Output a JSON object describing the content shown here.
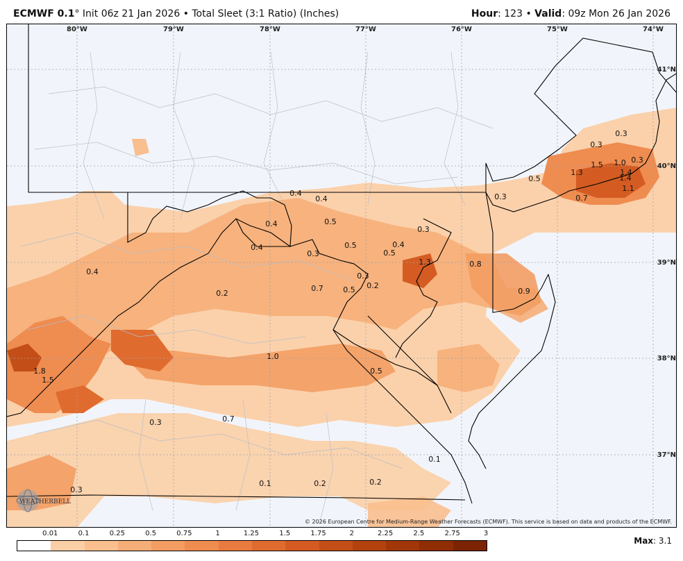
{
  "header": {
    "model": "ECMWF 0.1",
    "degree": "°",
    "init": "Init 06z 21 Jan 2026",
    "bullet": "•",
    "product": "Total Sleet (3:1 Ratio) (Inches)",
    "hour_label": "Hour",
    "hour_value": ": 123",
    "valid_label": "Valid",
    "valid_value": ": 09z Mon 26 Jan 2026"
  },
  "axes": {
    "longitudes": [
      "80°W",
      "79°W",
      "78°W",
      "77°W",
      "76°W",
      "75°W",
      "74°W"
    ],
    "latitudes": [
      "41°N",
      "40°N",
      "39°N",
      "38°N",
      "37°N"
    ]
  },
  "map_labels": [
    "0.4",
    "0.4",
    "0.5",
    "0.4",
    "0.4",
    "0.3",
    "0.5",
    "0.4",
    "0.5",
    "0.3",
    "0.8",
    "0.7",
    "0.5",
    "0.3",
    "0.2",
    "0.9",
    "0.4",
    "0.2",
    "1.0",
    "0.5",
    "1.8",
    "1.5",
    "0.3",
    "0.7",
    "0.1",
    "0.2",
    "0.2",
    "0.1",
    "0.3",
    "0.3",
    "0.3",
    "1.5",
    "1.0",
    "0.3",
    "1.3",
    "1.4",
    "1.4",
    "1.1",
    "0.5",
    "0.3",
    "0.7",
    "1.3"
  ],
  "copyright": "© 2026 European Centre for Medium-Range Weather Forecasts (ECMWF). This service is based on data and products of the ECMWF.",
  "logo_text": "WEATHERBELL",
  "legend": {
    "ticks": [
      "0.01",
      "0.1",
      "0.25",
      "0.5",
      "0.75",
      "1",
      "1.25",
      "1.5",
      "1.75",
      "2",
      "2.25",
      "2.5",
      "2.75",
      "3"
    ],
    "colors": [
      "#ffffff",
      "#fbcfa6",
      "#f9bf8e",
      "#f6ae78",
      "#f39d63",
      "#ef8c50",
      "#ea7b40",
      "#e06b2f",
      "#d45c22",
      "#c44e17",
      "#b3420f",
      "#a13709",
      "#8f2d05",
      "#7c2402"
    ]
  },
  "max": {
    "label": "Max",
    "value": ": 3.1"
  }
}
